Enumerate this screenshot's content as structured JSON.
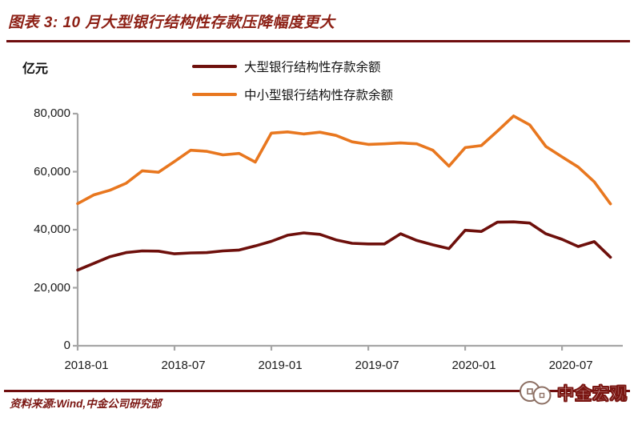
{
  "page": {
    "title": "图表 3: 10 月大型银行结构性存款压降幅度更大",
    "y_unit": "亿元",
    "source_note": "资料来源:Wind,中金公司研究部",
    "brand_name": "中金宏观",
    "colors": {
      "title_red": "#8C1F14",
      "rule_red": "#6F0D0E",
      "series_large_banks": "#6E100C",
      "series_small_banks": "#E8771F",
      "axis_gray": "#A6A6A6"
    }
  },
  "chart_data": {
    "type": "line",
    "title": "图表 3: 10 月大型银行结构性存款压降幅度更大",
    "ylabel": "亿元",
    "ylim": [
      0,
      80000
    ],
    "yticks": [
      0,
      20000,
      40000,
      60000,
      80000
    ],
    "ytick_labels": [
      "0",
      "20,000",
      "40,000",
      "60,000",
      "80,000"
    ],
    "xtick_labels": [
      "2018-01",
      "2018-07",
      "2019-01",
      "2019-07",
      "2020-01",
      "2020-07"
    ],
    "grid": false,
    "legend_position": "top",
    "x": [
      "2018-01",
      "2018-02",
      "2018-03",
      "2018-04",
      "2018-05",
      "2018-06",
      "2018-07",
      "2018-08",
      "2018-09",
      "2018-10",
      "2018-11",
      "2018-12",
      "2019-01",
      "2019-02",
      "2019-03",
      "2019-04",
      "2019-05",
      "2019-06",
      "2019-07",
      "2019-08",
      "2019-09",
      "2019-10",
      "2019-11",
      "2019-12",
      "2020-01",
      "2020-02",
      "2020-03",
      "2020-04",
      "2020-05",
      "2020-06",
      "2020-07",
      "2020-08",
      "2020-09",
      "2020-10"
    ],
    "series": [
      {
        "name": "大型银行结构性存款余额",
        "color": "#6E100C",
        "values": [
          26100,
          28400,
          30700,
          32100,
          32700,
          32600,
          31700,
          32000,
          32100,
          32700,
          33000,
          34400,
          36000,
          38100,
          38900,
          38400,
          36500,
          35300,
          35100,
          35100,
          38600,
          36300,
          34800,
          33500,
          39800,
          39400,
          42600,
          42700,
          42300,
          38600,
          36700,
          34200,
          35900,
          30500
        ]
      },
      {
        "name": "中小型银行结构性存款余额",
        "color": "#E8771F",
        "values": [
          49000,
          52000,
          53600,
          56000,
          60300,
          59800,
          63500,
          67400,
          67000,
          65800,
          66300,
          63300,
          73300,
          73700,
          73000,
          73600,
          72500,
          70300,
          69400,
          69600,
          69900,
          69600,
          67400,
          61900,
          68300,
          69000,
          74000,
          79200,
          76100,
          68700,
          65100,
          61600,
          56500,
          48900
        ]
      }
    ]
  }
}
